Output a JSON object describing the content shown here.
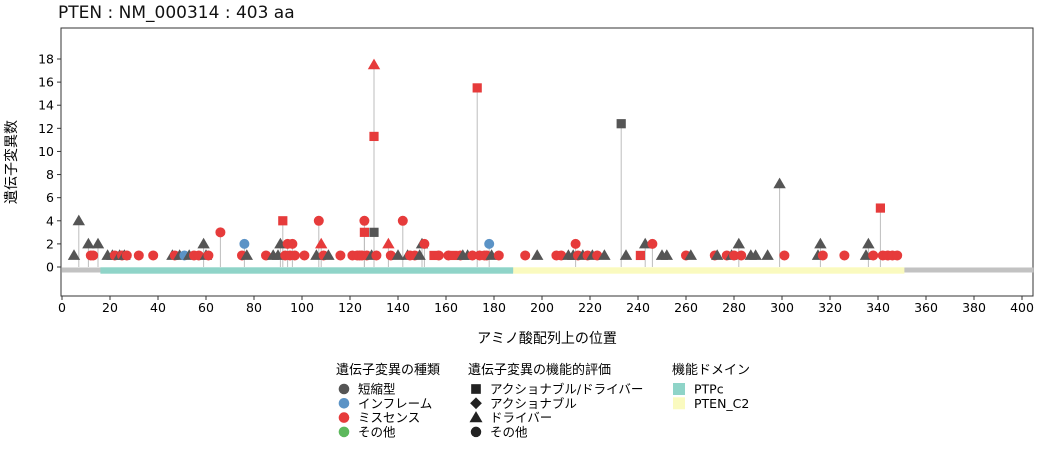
{
  "chart_data": {
    "type": "lollipop",
    "title": "PTEN : NM_000314 : 403 aa",
    "xlabel": "アミノ酸配列上の位置",
    "ylabel": "遺伝子変異数",
    "xlim": [
      0,
      403
    ],
    "ylim": [
      -2.5,
      20.5
    ],
    "xticks": [
      0,
      20,
      40,
      60,
      80,
      100,
      120,
      140,
      160,
      180,
      200,
      220,
      240,
      260,
      280,
      300,
      320,
      340,
      360,
      380,
      400
    ],
    "yticks": [
      0,
      2,
      4,
      6,
      8,
      10,
      12,
      14,
      16,
      18
    ],
    "grid": false,
    "protein_length": 403,
    "domains": [
      {
        "name": "PTPc",
        "start": 16,
        "end": 188,
        "color": "#8fd4c8"
      },
      {
        "name": "PTEN_C2",
        "start": 188,
        "end": 351,
        "color": "#fafabf"
      }
    ],
    "variant_type_colors": {
      "短縮型": "#555555",
      "インフレーム": "#5b93c6",
      "ミスセンス": "#e63b3b",
      "その他": "#5cb85c"
    },
    "points": [
      {
        "x": 5,
        "y": 1,
        "type": "短縮型",
        "shape": "triangle"
      },
      {
        "x": 7,
        "y": 4,
        "type": "短縮型",
        "shape": "triangle"
      },
      {
        "x": 11,
        "y": 2,
        "type": "短縮型",
        "shape": "triangle"
      },
      {
        "x": 12,
        "y": 1,
        "type": "ミスセンス",
        "shape": "circle"
      },
      {
        "x": 13,
        "y": 1,
        "type": "ミスセンス",
        "shape": "circle"
      },
      {
        "x": 15,
        "y": 2,
        "type": "短縮型",
        "shape": "triangle"
      },
      {
        "x": 19,
        "y": 1,
        "type": "短縮型",
        "shape": "triangle"
      },
      {
        "x": 21,
        "y": 1,
        "type": "短縮型",
        "shape": "triangle"
      },
      {
        "x": 22,
        "y": 1,
        "type": "ミスセンス",
        "shape": "circle"
      },
      {
        "x": 24,
        "y": 1,
        "type": "短縮型",
        "shape": "triangle"
      },
      {
        "x": 25,
        "y": 1,
        "type": "ミスセンス",
        "shape": "circle"
      },
      {
        "x": 26,
        "y": 1,
        "type": "短縮型",
        "shape": "triangle"
      },
      {
        "x": 27,
        "y": 1,
        "type": "ミスセンス",
        "shape": "circle"
      },
      {
        "x": 32,
        "y": 1,
        "type": "ミスセンス",
        "shape": "circle"
      },
      {
        "x": 38,
        "y": 1,
        "type": "ミスセンス",
        "shape": "circle"
      },
      {
        "x": 46,
        "y": 1,
        "type": "短縮型",
        "shape": "triangle"
      },
      {
        "x": 47,
        "y": 1,
        "type": "ミスセンス",
        "shape": "circle"
      },
      {
        "x": 49,
        "y": 1,
        "type": "短縮型",
        "shape": "triangle"
      },
      {
        "x": 51,
        "y": 1,
        "type": "インフレーム",
        "shape": "circle"
      },
      {
        "x": 53,
        "y": 1,
        "type": "短縮型",
        "shape": "triangle"
      },
      {
        "x": 55,
        "y": 1,
        "type": "ミスセンス",
        "shape": "circle"
      },
      {
        "x": 57,
        "y": 1,
        "type": "ミスセンス",
        "shape": "circle"
      },
      {
        "x": 59,
        "y": 2,
        "type": "短縮型",
        "shape": "triangle"
      },
      {
        "x": 60,
        "y": 1,
        "type": "短縮型",
        "shape": "triangle"
      },
      {
        "x": 61,
        "y": 1,
        "type": "ミスセンス",
        "shape": "circle"
      },
      {
        "x": 66,
        "y": 3,
        "type": "ミスセンス",
        "shape": "circle"
      },
      {
        "x": 75,
        "y": 1,
        "type": "ミスセンス",
        "shape": "circle"
      },
      {
        "x": 76,
        "y": 2,
        "type": "インフレーム",
        "shape": "circle"
      },
      {
        "x": 77,
        "y": 1,
        "type": "短縮型",
        "shape": "triangle"
      },
      {
        "x": 85,
        "y": 1,
        "type": "ミスセンス",
        "shape": "circle"
      },
      {
        "x": 88,
        "y": 1,
        "type": "短縮型",
        "shape": "triangle"
      },
      {
        "x": 90,
        "y": 1,
        "type": "短縮型",
        "shape": "triangle"
      },
      {
        "x": 91,
        "y": 2,
        "type": "短縮型",
        "shape": "triangle"
      },
      {
        "x": 92,
        "y": 4,
        "type": "ミスセンス",
        "shape": "square"
      },
      {
        "x": 93,
        "y": 1,
        "type": "ミスセンス",
        "shape": "circle"
      },
      {
        "x": 94,
        "y": 2,
        "type": "ミスセンス",
        "shape": "circle"
      },
      {
        "x": 95,
        "y": 1,
        "type": "ミスセンス",
        "shape": "circle"
      },
      {
        "x": 96,
        "y": 2,
        "type": "ミスセンス",
        "shape": "circle"
      },
      {
        "x": 97,
        "y": 1,
        "type": "ミスセンス",
        "shape": "circle"
      },
      {
        "x": 101,
        "y": 1,
        "type": "ミスセンス",
        "shape": "circle"
      },
      {
        "x": 106,
        "y": 1,
        "type": "短縮型",
        "shape": "triangle"
      },
      {
        "x": 107,
        "y": 4,
        "type": "ミスセンス",
        "shape": "circle"
      },
      {
        "x": 108,
        "y": 2,
        "type": "ミスセンス",
        "shape": "triangle"
      },
      {
        "x": 109,
        "y": 1,
        "type": "ミスセンス",
        "shape": "circle"
      },
      {
        "x": 111,
        "y": 1,
        "type": "短縮型",
        "shape": "triangle"
      },
      {
        "x": 116,
        "y": 1,
        "type": "ミスセンス",
        "shape": "circle"
      },
      {
        "x": 121,
        "y": 1,
        "type": "ミスセンス",
        "shape": "circle"
      },
      {
        "x": 123,
        "y": 1,
        "type": "ミスセンス",
        "shape": "circle"
      },
      {
        "x": 124,
        "y": 1,
        "type": "ミスセンス",
        "shape": "circle"
      },
      {
        "x": 125,
        "y": 1,
        "type": "ミスセンス",
        "shape": "circle"
      },
      {
        "x": 126,
        "y": 4,
        "type": "ミスセンス",
        "shape": "circle"
      },
      {
        "x": 126,
        "y": 3,
        "type": "ミスセンス",
        "shape": "square"
      },
      {
        "x": 127,
        "y": 1,
        "type": "ミスセンス",
        "shape": "circle"
      },
      {
        "x": 129,
        "y": 1,
        "type": "短縮型",
        "shape": "triangle"
      },
      {
        "x": 130,
        "y": 17.5,
        "type": "ミスセンス",
        "shape": "triangle"
      },
      {
        "x": 130,
        "y": 11.3,
        "type": "ミスセンス",
        "shape": "square"
      },
      {
        "x": 130,
        "y": 3,
        "type": "短縮型",
        "shape": "square"
      },
      {
        "x": 131,
        "y": 1,
        "type": "ミスセンス",
        "shape": "circle"
      },
      {
        "x": 136,
        "y": 2,
        "type": "ミスセンス",
        "shape": "triangle"
      },
      {
        "x": 137,
        "y": 1,
        "type": "ミスセンス",
        "shape": "circle"
      },
      {
        "x": 140,
        "y": 1,
        "type": "短縮型",
        "shape": "triangle"
      },
      {
        "x": 142,
        "y": 4,
        "type": "ミスセンス",
        "shape": "circle"
      },
      {
        "x": 144,
        "y": 1,
        "type": "短縮型",
        "shape": "triangle"
      },
      {
        "x": 145,
        "y": 1,
        "type": "ミスセンス",
        "shape": "circle"
      },
      {
        "x": 147,
        "y": 1,
        "type": "ミスセンス",
        "shape": "circle"
      },
      {
        "x": 149,
        "y": 1,
        "type": "短縮型",
        "shape": "triangle"
      },
      {
        "x": 150,
        "y": 2,
        "type": "短縮型",
        "shape": "triangle"
      },
      {
        "x": 151,
        "y": 2,
        "type": "ミスセンス",
        "shape": "circle"
      },
      {
        "x": 155,
        "y": 1,
        "type": "ミスセンス",
        "shape": "square"
      },
      {
        "x": 157,
        "y": 1,
        "type": "ミスセンス",
        "shape": "circle"
      },
      {
        "x": 161,
        "y": 1,
        "type": "ミスセンス",
        "shape": "circle"
      },
      {
        "x": 163,
        "y": 1,
        "type": "ミスセンス",
        "shape": "square"
      },
      {
        "x": 166,
        "y": 1,
        "type": "ミスセンス",
        "shape": "circle"
      },
      {
        "x": 167,
        "y": 1,
        "type": "短縮型",
        "shape": "triangle"
      },
      {
        "x": 169,
        "y": 1,
        "type": "短縮型",
        "shape": "triangle"
      },
      {
        "x": 171,
        "y": 1,
        "type": "ミスセンス",
        "shape": "circle"
      },
      {
        "x": 173,
        "y": 15.5,
        "type": "ミスセンス",
        "shape": "square"
      },
      {
        "x": 174,
        "y": 1,
        "type": "ミスセンス",
        "shape": "circle"
      },
      {
        "x": 176,
        "y": 1,
        "type": "ミスセンス",
        "shape": "circle"
      },
      {
        "x": 177,
        "y": 1,
        "type": "ミスセンス",
        "shape": "circle"
      },
      {
        "x": 178,
        "y": 2,
        "type": "インフレーム",
        "shape": "circle"
      },
      {
        "x": 179,
        "y": 1,
        "type": "短縮型",
        "shape": "triangle"
      },
      {
        "x": 182,
        "y": 1,
        "type": "ミスセンス",
        "shape": "circle"
      },
      {
        "x": 193,
        "y": 1,
        "type": "ミスセンス",
        "shape": "circle"
      },
      {
        "x": 198,
        "y": 1,
        "type": "短縮型",
        "shape": "triangle"
      },
      {
        "x": 206,
        "y": 1,
        "type": "ミスセンス",
        "shape": "circle"
      },
      {
        "x": 208,
        "y": 1,
        "type": "ミスセンス",
        "shape": "circle"
      },
      {
        "x": 211,
        "y": 1,
        "type": "短縮型",
        "shape": "triangle"
      },
      {
        "x": 213,
        "y": 1,
        "type": "短縮型",
        "shape": "triangle"
      },
      {
        "x": 214,
        "y": 2,
        "type": "ミスセンス",
        "shape": "circle"
      },
      {
        "x": 215,
        "y": 1,
        "type": "ミスセンス",
        "shape": "circle"
      },
      {
        "x": 217,
        "y": 1,
        "type": "短縮型",
        "shape": "triangle"
      },
      {
        "x": 219,
        "y": 1,
        "type": "ミスセンス",
        "shape": "circle"
      },
      {
        "x": 221,
        "y": 1,
        "type": "短縮型",
        "shape": "triangle"
      },
      {
        "x": 223,
        "y": 1,
        "type": "ミスセンス",
        "shape": "circle"
      },
      {
        "x": 226,
        "y": 1,
        "type": "短縮型",
        "shape": "triangle"
      },
      {
        "x": 233,
        "y": 12.4,
        "type": "短縮型",
        "shape": "square"
      },
      {
        "x": 235,
        "y": 1,
        "type": "短縮型",
        "shape": "triangle"
      },
      {
        "x": 241,
        "y": 1,
        "type": "ミスセンス",
        "shape": "square"
      },
      {
        "x": 243,
        "y": 2,
        "type": "短縮型",
        "shape": "triangle"
      },
      {
        "x": 246,
        "y": 2,
        "type": "ミスセンス",
        "shape": "circle"
      },
      {
        "x": 250,
        "y": 1,
        "type": "短縮型",
        "shape": "triangle"
      },
      {
        "x": 252,
        "y": 1,
        "type": "短縮型",
        "shape": "triangle"
      },
      {
        "x": 260,
        "y": 1,
        "type": "ミスセンス",
        "shape": "circle"
      },
      {
        "x": 262,
        "y": 1,
        "type": "短縮型",
        "shape": "triangle"
      },
      {
        "x": 272,
        "y": 1,
        "type": "ミスセンス",
        "shape": "circle"
      },
      {
        "x": 273,
        "y": 1,
        "type": "短縮型",
        "shape": "triangle"
      },
      {
        "x": 277,
        "y": 1,
        "type": "ミスセンス",
        "shape": "circle"
      },
      {
        "x": 279,
        "y": 1,
        "type": "短縮型",
        "shape": "triangle"
      },
      {
        "x": 280,
        "y": 1,
        "type": "ミスセンス",
        "shape": "circle"
      },
      {
        "x": 282,
        "y": 2,
        "type": "短縮型",
        "shape": "triangle"
      },
      {
        "x": 283,
        "y": 1,
        "type": "ミスセンス",
        "shape": "circle"
      },
      {
        "x": 287,
        "y": 1,
        "type": "短縮型",
        "shape": "triangle"
      },
      {
        "x": 289,
        "y": 1,
        "type": "短縮型",
        "shape": "triangle"
      },
      {
        "x": 294,
        "y": 1,
        "type": "短縮型",
        "shape": "triangle"
      },
      {
        "x": 299,
        "y": 7.2,
        "type": "短縮型",
        "shape": "triangle"
      },
      {
        "x": 301,
        "y": 1,
        "type": "ミスセンス",
        "shape": "circle"
      },
      {
        "x": 315,
        "y": 1,
        "type": "短縮型",
        "shape": "triangle"
      },
      {
        "x": 316,
        "y": 2,
        "type": "短縮型",
        "shape": "triangle"
      },
      {
        "x": 317,
        "y": 1,
        "type": "ミスセンス",
        "shape": "circle"
      },
      {
        "x": 326,
        "y": 1,
        "type": "ミスセンス",
        "shape": "circle"
      },
      {
        "x": 335,
        "y": 1,
        "type": "短縮型",
        "shape": "triangle"
      },
      {
        "x": 336,
        "y": 2,
        "type": "短縮型",
        "shape": "triangle"
      },
      {
        "x": 338,
        "y": 1,
        "type": "ミスセンス",
        "shape": "circle"
      },
      {
        "x": 341,
        "y": 5.1,
        "type": "ミスセンス",
        "shape": "square"
      },
      {
        "x": 342,
        "y": 1,
        "type": "ミスセンス",
        "shape": "circle"
      },
      {
        "x": 344,
        "y": 1,
        "type": "ミスセンス",
        "shape": "circle"
      },
      {
        "x": 346,
        "y": 1,
        "type": "ミスセンス",
        "shape": "circle"
      },
      {
        "x": 348,
        "y": 1,
        "type": "ミスセンス",
        "shape": "circle"
      }
    ],
    "legend": {
      "placement": "bottom",
      "groups": [
        {
          "title": "遺伝子変異の種類",
          "kind": "color",
          "items": [
            {
              "label": "短縮型",
              "color": "#555555"
            },
            {
              "label": "インフレーム",
              "color": "#5b93c6"
            },
            {
              "label": "ミスセンス",
              "color": "#e63b3b"
            },
            {
              "label": "その他",
              "color": "#5cb85c"
            }
          ]
        },
        {
          "title": "遺伝子変異の機能的評価",
          "kind": "shape",
          "items": [
            {
              "label": "アクショナブル/ドライバー",
              "shape": "square"
            },
            {
              "label": "アクショナブル",
              "shape": "diamond"
            },
            {
              "label": "ドライバー",
              "shape": "triangle"
            },
            {
              "label": "その他",
              "shape": "circle"
            }
          ]
        },
        {
          "title": "機能ドメイン",
          "kind": "fill",
          "items": [
            {
              "label": "PTPc",
              "color": "#8fd4c8"
            },
            {
              "label": "PTEN_C2",
              "color": "#fafabf"
            }
          ]
        }
      ]
    }
  }
}
